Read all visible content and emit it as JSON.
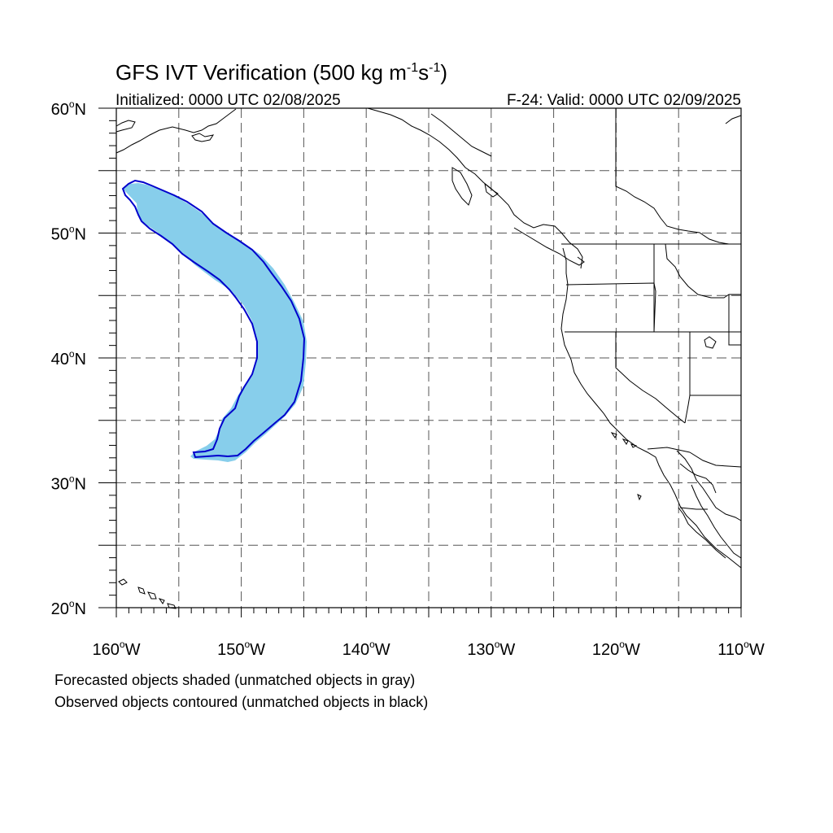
{
  "title": {
    "main": "GFS IVT Verification (500 kg m",
    "sup1": "-1",
    "mid": "s",
    "sup2": "-1",
    "close": ")"
  },
  "subtitle_left": "Initialized: 0000 UTC 02/08/2025",
  "subtitle_right": "F-24: Valid: 0000 UTC 02/09/2025",
  "lat_labels": [
    {
      "value": 60,
      "deg": "60",
      "hemi": "N"
    },
    {
      "value": 50,
      "deg": "50",
      "hemi": "N"
    },
    {
      "value": 40,
      "deg": "40",
      "hemi": "N"
    },
    {
      "value": 30,
      "deg": "30",
      "hemi": "N"
    },
    {
      "value": 20,
      "deg": "20",
      "hemi": "N"
    }
  ],
  "lon_labels": [
    {
      "value": -160,
      "deg": "160",
      "hemi": "W"
    },
    {
      "value": -150,
      "deg": "150",
      "hemi": "W"
    },
    {
      "value": -140,
      "deg": "140",
      "hemi": "W"
    },
    {
      "value": -130,
      "deg": "130",
      "hemi": "W"
    },
    {
      "value": -120,
      "deg": "120",
      "hemi": "W"
    },
    {
      "value": -110,
      "deg": "110",
      "hemi": "W"
    }
  ],
  "extent": {
    "lon_min": -160,
    "lon_max": -110,
    "lat_min": 20,
    "lat_max": 60
  },
  "grid_spacing_deg": 5,
  "colors": {
    "forecast_fill": "#87CEEB",
    "observed_contour": "#0000CC",
    "coastline": "#000000",
    "grid": "#555555"
  },
  "caption": {
    "line1": "Forecasted objects shaded (unmatched objects in gray)",
    "line2": "Observed objects contoured (unmatched objects in black)"
  }
}
